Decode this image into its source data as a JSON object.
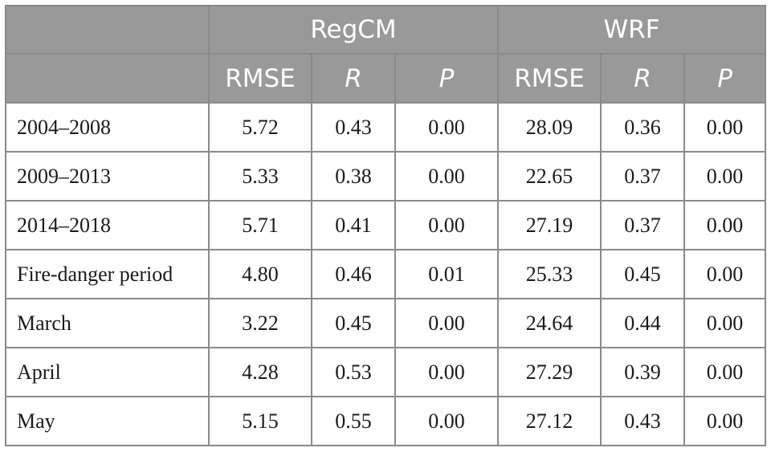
{
  "header": {
    "group1": "RegCM",
    "group2": "WRF",
    "col_rmse": "RMSE",
    "col_r": "R",
    "col_p": "P"
  },
  "rows": [
    {
      "label": "2004–2008",
      "regcm_rmse": "5.72",
      "regcm_r": "0.43",
      "regcm_p": "0.00",
      "wrf_rmse": "28.09",
      "wrf_r": "0.36",
      "wrf_p": "0.00"
    },
    {
      "label": "2009–2013",
      "regcm_rmse": "5.33",
      "regcm_r": "0.38",
      "regcm_p": "0.00",
      "wrf_rmse": "22.65",
      "wrf_r": "0.37",
      "wrf_p": "0.00"
    },
    {
      "label": "2014–2018",
      "regcm_rmse": "5.71",
      "regcm_r": "0.41",
      "regcm_p": "0.00",
      "wrf_rmse": "27.19",
      "wrf_r": "0.37",
      "wrf_p": "0.00"
    },
    {
      "label": "Fire-danger period",
      "regcm_rmse": "4.80",
      "regcm_r": "0.46",
      "regcm_p": "0.01",
      "wrf_rmse": "25.33",
      "wrf_r": "0.45",
      "wrf_p": "0.00"
    },
    {
      "label": "March",
      "regcm_rmse": "3.22",
      "regcm_r": "0.45",
      "regcm_p": "0.00",
      "wrf_rmse": "24.64",
      "wrf_r": "0.44",
      "wrf_p": "0.00"
    },
    {
      "label": "April",
      "regcm_rmse": "4.28",
      "regcm_r": "0.53",
      "regcm_p": "0.00",
      "wrf_rmse": "27.29",
      "wrf_r": "0.39",
      "wrf_p": "0.00"
    },
    {
      "label": "May",
      "regcm_rmse": "5.15",
      "regcm_r": "0.55",
      "regcm_p": "0.00",
      "wrf_rmse": "27.12",
      "wrf_r": "0.43",
      "wrf_p": "0.00"
    }
  ],
  "colors": {
    "header_bg": "#999999",
    "header_text": "#ffffff",
    "border": "#8a8a8a",
    "body_text": "#1a1a1a"
  }
}
